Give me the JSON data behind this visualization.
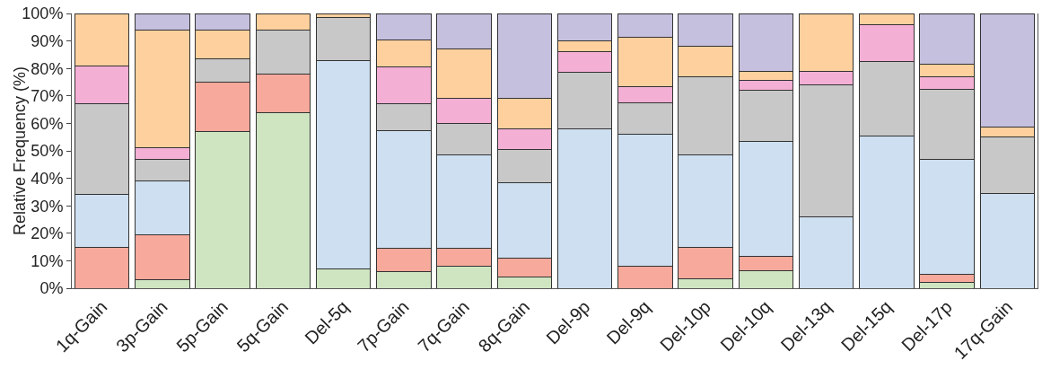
{
  "chart_data": {
    "type": "bar",
    "stacked": true,
    "ylabel": "Relative Frequency (%)",
    "categories": [
      "1q-Gain",
      "3p-Gain",
      "5p-Gain",
      "5q-Gain",
      "Del-5q",
      "7p-Gain",
      "7q-Gain",
      "8q-Gain",
      "Del-9p",
      "Del-9q",
      "Del-10p",
      "Del-10q",
      "Del-13q",
      "Del-15q",
      "Del-17p",
      "17q-Gain"
    ],
    "series": [
      {
        "color": "#cfe5c2",
        "values": [
          0,
          3,
          57,
          64,
          7,
          6,
          8,
          4,
          0,
          0,
          3.5,
          6.5,
          0,
          0,
          2,
          0
        ]
      },
      {
        "color": "#f7a99c",
        "values": [
          15,
          16.5,
          18,
          14,
          0,
          8.5,
          6.5,
          7,
          0,
          8,
          11.5,
          5,
          0,
          0,
          3,
          0
        ]
      },
      {
        "color": "#cddff0",
        "values": [
          19,
          19.5,
          0,
          0,
          76,
          43,
          34,
          27.5,
          58,
          48,
          33.5,
          42,
          26,
          55.5,
          42,
          34.5
        ]
      },
      {
        "color": "#c8c8c8",
        "values": [
          33,
          8,
          8.5,
          16,
          15.5,
          9.5,
          11.5,
          12,
          20.5,
          11.5,
          28.5,
          18.5,
          48,
          27,
          25.5,
          20.5
        ]
      },
      {
        "color": "#f4afd5",
        "values": [
          14,
          4,
          0,
          0,
          0,
          13.5,
          9,
          7.5,
          7.5,
          6,
          0,
          3.5,
          5,
          13.5,
          4.5,
          0
        ]
      },
      {
        "color": "#fdd09d",
        "values": [
          19,
          43,
          10.5,
          6,
          1.5,
          10,
          18,
          11,
          4,
          18,
          11,
          3.5,
          21,
          4,
          4.5,
          3.5
        ]
      },
      {
        "color": "#c6c0df",
        "values": [
          0,
          6,
          6,
          0,
          0,
          9.5,
          13,
          31,
          10,
          8.5,
          12,
          21,
          0,
          0,
          18.5,
          41.5
        ]
      }
    ],
    "ylim": [
      0,
      100
    ],
    "yticks": [
      {
        "value": 0,
        "label": "0%"
      },
      {
        "value": 10,
        "label": "10%"
      },
      {
        "value": 20,
        "label": "20%"
      },
      {
        "value": 30,
        "label": "30%"
      },
      {
        "value": 40,
        "label": "40%"
      },
      {
        "value": 50,
        "label": "50%"
      },
      {
        "value": 60,
        "label": "60%"
      },
      {
        "value": 70,
        "label": "70%"
      },
      {
        "value": 80,
        "label": "80%"
      },
      {
        "value": 90,
        "label": "90%"
      },
      {
        "value": 100,
        "label": "100%"
      }
    ],
    "grid": false
  }
}
